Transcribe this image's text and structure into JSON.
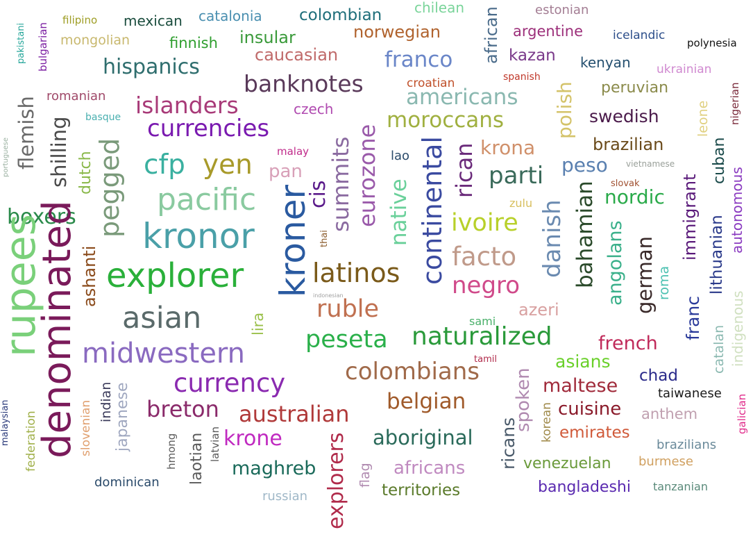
{
  "words": [
    {
      "text": "pakistani",
      "color": "#26a69a"
    },
    {
      "text": "bulgarian",
      "color": "#7b1fa2"
    },
    {
      "text": "filipino",
      "color": "#9e9d24"
    },
    {
      "text": "mexican",
      "color": "#1b4d3e"
    },
    {
      "text": "catalonia",
      "color": "#4a8fb0"
    },
    {
      "text": "colombian",
      "color": "#1e6e7a"
    },
    {
      "text": "chilean",
      "color": "#7ad49a"
    },
    {
      "text": "african",
      "color": "#4a6b8a"
    },
    {
      "text": "estonian",
      "color": "#a37d93"
    },
    {
      "text": "mongolian",
      "color": "#c8b86e"
    },
    {
      "text": "finnish",
      "color": "#2e9e2e"
    },
    {
      "text": "insular",
      "color": "#3a9a3a"
    },
    {
      "text": "norwegian",
      "color": "#b0632e"
    },
    {
      "text": "argentine",
      "color": "#9c2f7a"
    },
    {
      "text": "icelandic",
      "color": "#2c4e8a"
    },
    {
      "text": "polynesia",
      "color": "#111111"
    },
    {
      "text": "caucasian",
      "color": "#c06a6a"
    },
    {
      "text": "hispanics",
      "color": "#2f6e6e"
    },
    {
      "text": "franco",
      "color": "#6a86c8"
    },
    {
      "text": "kazan",
      "color": "#7a3a8a"
    },
    {
      "text": "kenyan",
      "color": "#255070"
    },
    {
      "text": "ukrainian",
      "color": "#d08ad0"
    },
    {
      "text": "spanish",
      "color": "#c0392b"
    },
    {
      "text": "nigerian",
      "color": "#7a2a3a"
    },
    {
      "text": "flemish",
      "color": "#6a6a6a"
    },
    {
      "text": "romanian",
      "color": "#a04a6a"
    },
    {
      "text": "banknotes",
      "color": "#5a3a5a"
    },
    {
      "text": "croatian",
      "color": "#c0502a"
    },
    {
      "text": "americans",
      "color": "#8ab8b0"
    },
    {
      "text": "polish",
      "color": "#d4c36a"
    },
    {
      "text": "peruvian",
      "color": "#8a8a4a"
    },
    {
      "text": "leone",
      "color": "#e0d080"
    },
    {
      "text": "portuguese",
      "color": "#9ab0a0"
    },
    {
      "text": "shilling",
      "color": "#4a4a4a"
    },
    {
      "text": "islanders",
      "color": "#a83a78"
    },
    {
      "text": "czech",
      "color": "#b04ab0"
    },
    {
      "text": "basque",
      "color": "#4ab0b0"
    },
    {
      "text": "swedish",
      "color": "#4a1a4a"
    },
    {
      "text": "cuban",
      "color": "#1a4a4a"
    },
    {
      "text": "currencies",
      "color": "#7a1ab0"
    },
    {
      "text": "moroccans",
      "color": "#a0b040"
    },
    {
      "text": "summits",
      "color": "#8a6aa0"
    },
    {
      "text": "eurozone",
      "color": "#9a5aaa"
    },
    {
      "text": "brazilian",
      "color": "#6a4a1a"
    },
    {
      "text": "pegged",
      "color": "#7a9a7a"
    },
    {
      "text": "dutch",
      "color": "#8ab84a"
    },
    {
      "text": "krona",
      "color": "#d0906a"
    },
    {
      "text": "autonomous",
      "color": "#8a3ac0"
    },
    {
      "text": "cfp",
      "color": "#3ab0a0"
    },
    {
      "text": "yen",
      "color": "#a89a2a"
    },
    {
      "text": "malay",
      "color": "#c02a8a"
    },
    {
      "text": "lao",
      "color": "#2a4a6a"
    },
    {
      "text": "rican",
      "color": "#6a2a7a"
    },
    {
      "text": "peso",
      "color": "#5a80b0"
    },
    {
      "text": "vietnamese",
      "color": "#9aa09a"
    },
    {
      "text": "immigrant",
      "color": "#5a1a7a"
    },
    {
      "text": "pan",
      "color": "#d8a0b8"
    },
    {
      "text": "cis",
      "color": "#5a1a8a"
    },
    {
      "text": "parti",
      "color": "#3a6a5a"
    },
    {
      "text": "slovak",
      "color": "#a05030"
    },
    {
      "text": "pacific",
      "color": "#8acaa0"
    },
    {
      "text": "boxers",
      "color": "#2a8a4a"
    },
    {
      "text": "native",
      "color": "#6ad09a"
    },
    {
      "text": "continental",
      "color": "#3a4aa0"
    },
    {
      "text": "zulu",
      "color": "#d8c060"
    },
    {
      "text": "nordic",
      "color": "#2aaa4a"
    },
    {
      "text": "rupees",
      "color": "#7ad07a"
    },
    {
      "text": "denominated",
      "color": "#7a1a5a"
    },
    {
      "text": "kronor",
      "color": "#4aa0a8"
    },
    {
      "text": "kroner",
      "color": "#2a5aa0"
    },
    {
      "text": "ivoire",
      "color": "#b8d02a"
    },
    {
      "text": "danish",
      "color": "#6a8ab0"
    },
    {
      "text": "bahamian",
      "color": "#2a4a2a"
    },
    {
      "text": "lithuanian",
      "color": "#2a3a8a"
    },
    {
      "text": "thai",
      "color": "#8a5a2a"
    },
    {
      "text": "ashanti",
      "color": "#8a4a1a"
    },
    {
      "text": "facto",
      "color": "#c09a8a"
    },
    {
      "text": "angolans",
      "color": "#3ab08a"
    },
    {
      "text": "german",
      "color": "#3a2a2a"
    },
    {
      "text": "roma",
      "color": "#4ac0b0"
    },
    {
      "text": "explorer",
      "color": "#2ab03a"
    },
    {
      "text": "latinos",
      "color": "#7a5a1a"
    },
    {
      "text": "negro",
      "color": "#d04a8a"
    },
    {
      "text": "indonesian",
      "color": "#a0a0a0"
    },
    {
      "text": "asian",
      "color": "#5a6a6a"
    },
    {
      "text": "ruble",
      "color": "#c07050"
    },
    {
      "text": "azeri",
      "color": "#d8a0a0"
    },
    {
      "text": "franc",
      "color": "#2a3a9a"
    },
    {
      "text": "indigenous",
      "color": "#d0e0c0"
    },
    {
      "text": "lira",
      "color": "#9ac04a"
    },
    {
      "text": "sami",
      "color": "#4ab06a"
    },
    {
      "text": "catalan",
      "color": "#8ab8b0"
    },
    {
      "text": "naturalized",
      "color": "#2a9a3a"
    },
    {
      "text": "peseta",
      "color": "#2ab04a"
    },
    {
      "text": "french",
      "color": "#c02a5a"
    },
    {
      "text": "midwestern",
      "color": "#8a6ac0"
    },
    {
      "text": "tamil",
      "color": "#b02a4a"
    },
    {
      "text": "asians",
      "color": "#6ad02a"
    },
    {
      "text": "colombians",
      "color": "#a06a4a"
    },
    {
      "text": "chad",
      "color": "#2a2a8a"
    },
    {
      "text": "currency",
      "color": "#8a2ab0"
    },
    {
      "text": "japanese",
      "color": "#a0a8c0"
    },
    {
      "text": "spoken",
      "color": "#b08ab0"
    },
    {
      "text": "maltese",
      "color": "#a02a3a"
    },
    {
      "text": "indian",
      "color": "#3a3a5a"
    },
    {
      "text": "taiwanese",
      "color": "#1a1a1a"
    },
    {
      "text": "galician",
      "color": "#e02a8a"
    },
    {
      "text": "belgian",
      "color": "#a05a2a"
    },
    {
      "text": "breton",
      "color": "#8a2a6a"
    },
    {
      "text": "slovenian",
      "color": "#e0a070"
    },
    {
      "text": "korean",
      "color": "#a08a4a"
    },
    {
      "text": "cuisine",
      "color": "#8a1a2a"
    },
    {
      "text": "anthem",
      "color": "#c0a0b0"
    },
    {
      "text": "malaysian",
      "color": "#2a3a7a"
    },
    {
      "text": "australian",
      "color": "#b03a3a"
    },
    {
      "text": "federation",
      "color": "#a0b04a"
    },
    {
      "text": "ricans",
      "color": "#4a5a6a"
    },
    {
      "text": "emirates",
      "color": "#d05a3a"
    },
    {
      "text": "krone",
      "color": "#c02ac0"
    },
    {
      "text": "aboriginal",
      "color": "#2a6a5a"
    },
    {
      "text": "brazilians",
      "color": "#6a8a9a"
    },
    {
      "text": "hmong",
      "color": "#5a5a5a"
    },
    {
      "text": "laotian",
      "color": "#5a5a5a"
    },
    {
      "text": "latvian",
      "color": "#5a5a5a"
    },
    {
      "text": "explorers",
      "color": "#b02a4a"
    },
    {
      "text": "flag",
      "color": "#b08ab0"
    },
    {
      "text": "maghreb",
      "color": "#1a6a5a"
    },
    {
      "text": "africans",
      "color": "#c08ac0"
    },
    {
      "text": "venezuelan",
      "color": "#6a9a3a"
    },
    {
      "text": "burmese",
      "color": "#d0a060"
    },
    {
      "text": "dominican",
      "color": "#2a4a6a"
    },
    {
      "text": "bangladeshi",
      "color": "#5a2ab0"
    },
    {
      "text": "tanzanian",
      "color": "#5a8a7a"
    },
    {
      "text": "territories",
      "color": "#5a7a2a"
    },
    {
      "text": "russian",
      "color": "#a0b8c8"
    }
  ]
}
